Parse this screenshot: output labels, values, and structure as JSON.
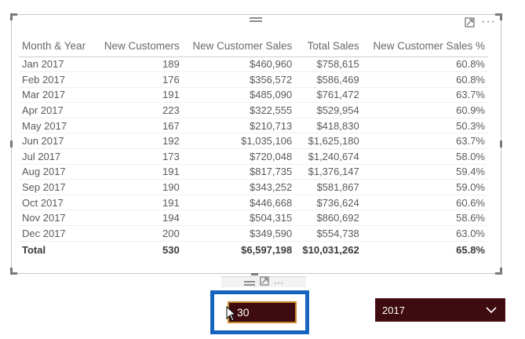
{
  "table": {
    "columns": [
      "Month & Year",
      "New Customers",
      "New Customer Sales",
      "Total Sales",
      "New Customer Sales %"
    ],
    "rows": [
      [
        "Jan 2017",
        "189",
        "$460,960",
        "$758,615",
        "60.8%"
      ],
      [
        "Feb 2017",
        "176",
        "$356,572",
        "$586,469",
        "60.8%"
      ],
      [
        "Mar 2017",
        "191",
        "$485,090",
        "$761,472",
        "63.7%"
      ],
      [
        "Apr 2017",
        "223",
        "$322,555",
        "$529,954",
        "60.9%"
      ],
      [
        "May 2017",
        "167",
        "$210,713",
        "$418,830",
        "50.3%"
      ],
      [
        "Jun 2017",
        "192",
        "$1,035,106",
        "$1,625,180",
        "63.7%"
      ],
      [
        "Jul 2017",
        "173",
        "$720,048",
        "$1,240,674",
        "58.0%"
      ],
      [
        "Aug 2017",
        "191",
        "$817,735",
        "$1,376,147",
        "59.4%"
      ],
      [
        "Sep 2017",
        "190",
        "$343,252",
        "$581,867",
        "59.0%"
      ],
      [
        "Oct 2017",
        "191",
        "$446,668",
        "$736,624",
        "60.6%"
      ],
      [
        "Nov 2017",
        "194",
        "$504,315",
        "$860,692",
        "58.6%"
      ],
      [
        "Dec 2017",
        "200",
        "$349,590",
        "$554,738",
        "63.0%"
      ]
    ],
    "total": [
      "Total",
      "530",
      "$6,597,198",
      "$10,031,262",
      "65.8%"
    ]
  },
  "text_slicer": {
    "value": "30"
  },
  "year_slicer": {
    "selected": "2017"
  },
  "colors": {
    "slicer_bg": "#3d0b10",
    "input_border": "#c78a2c",
    "highlight": "#1565c0"
  }
}
